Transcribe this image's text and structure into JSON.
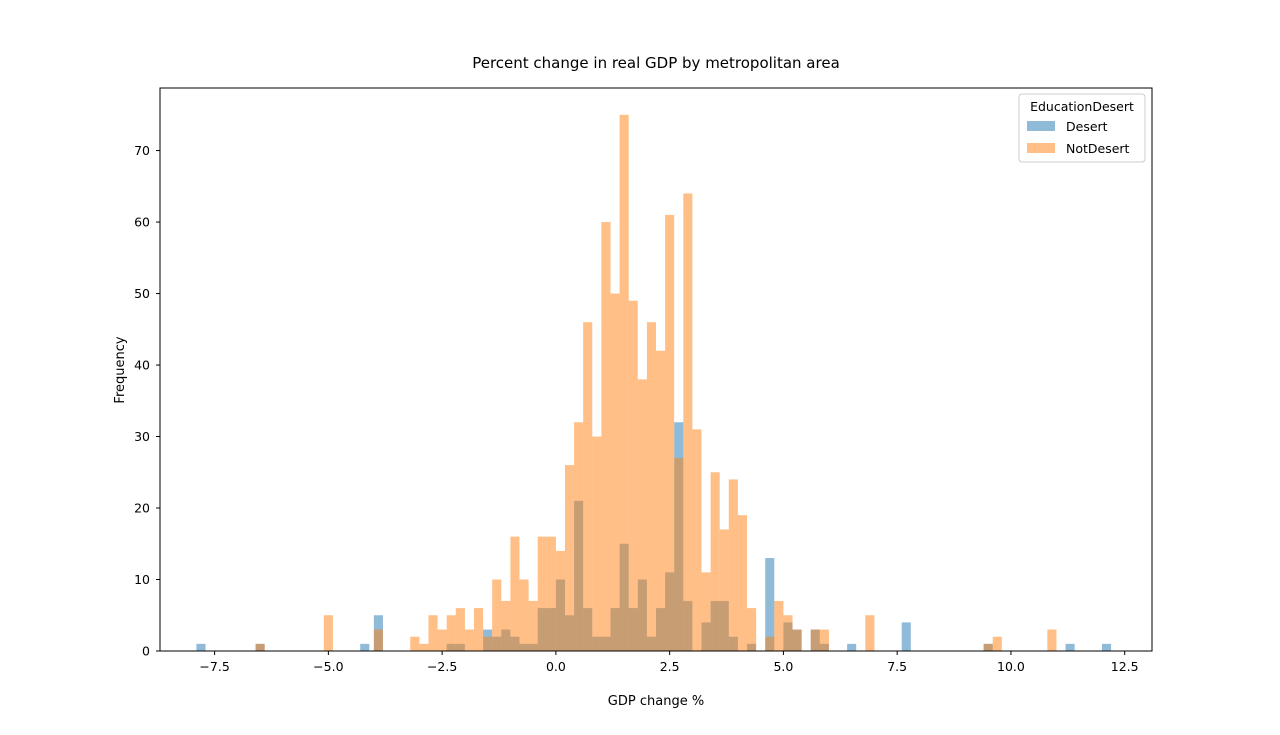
{
  "chart_data": {
    "type": "histogram",
    "title": "Percent change in real GDP by metropolitan area",
    "xlabel": "GDP change %",
    "ylabel": "Frequency",
    "xlim": [
      -8.7,
      13.1
    ],
    "ylim": [
      0,
      78.75
    ],
    "x_ticks": [
      -7.5,
      -5.0,
      -2.5,
      0.0,
      2.5,
      5.0,
      7.5,
      10.0,
      12.5
    ],
    "x_tick_labels": [
      "−7.5",
      "−5.0",
      "−2.5",
      "0.0",
      "2.5",
      "5.0",
      "7.5",
      "10.0",
      "12.5"
    ],
    "y_ticks": [
      0,
      10,
      20,
      30,
      40,
      50,
      60,
      70
    ],
    "y_tick_labels": [
      "0",
      "10",
      "20",
      "30",
      "40",
      "50",
      "60",
      "70"
    ],
    "bin_width": 0.2,
    "legend_title": "EducationDesert",
    "legend_position": "top-right",
    "series": [
      {
        "name": "Desert",
        "color": "#1f77b4",
        "opacity": 0.5,
        "bins": [
          [
            -7.9,
            1
          ],
          [
            -6.6,
            1
          ],
          [
            -4.3,
            1
          ],
          [
            -4.0,
            5
          ],
          [
            -2.4,
            1
          ],
          [
            -2.2,
            1
          ],
          [
            -1.6,
            3
          ],
          [
            -1.4,
            2
          ],
          [
            -1.2,
            3
          ],
          [
            -1.0,
            2
          ],
          [
            -0.8,
            1
          ],
          [
            -0.6,
            1
          ],
          [
            -0.4,
            6
          ],
          [
            -0.2,
            6
          ],
          [
            0.0,
            10
          ],
          [
            0.2,
            5
          ],
          [
            0.4,
            21
          ],
          [
            0.6,
            6
          ],
          [
            0.8,
            2
          ],
          [
            1.0,
            2
          ],
          [
            1.2,
            6
          ],
          [
            1.4,
            15
          ],
          [
            1.6,
            6
          ],
          [
            1.8,
            10
          ],
          [
            2.0,
            2
          ],
          [
            2.2,
            6
          ],
          [
            2.4,
            11
          ],
          [
            2.6,
            32
          ],
          [
            2.8,
            7
          ],
          [
            3.2,
            4
          ],
          [
            3.4,
            7
          ],
          [
            3.6,
            7
          ],
          [
            3.8,
            2
          ],
          [
            4.2,
            1
          ],
          [
            4.6,
            13
          ],
          [
            5.0,
            4
          ],
          [
            5.2,
            3
          ],
          [
            5.6,
            3
          ],
          [
            5.8,
            1
          ],
          [
            6.4,
            1
          ],
          [
            7.6,
            4
          ],
          [
            9.4,
            1
          ],
          [
            11.2,
            1
          ],
          [
            12.0,
            1
          ]
        ]
      },
      {
        "name": "NotDesert",
        "color": "#ff7f0e",
        "opacity": 0.5,
        "bins": [
          [
            -6.6,
            1
          ],
          [
            -5.1,
            5
          ],
          [
            -4.0,
            3
          ],
          [
            -3.2,
            2
          ],
          [
            -3.0,
            1
          ],
          [
            -2.8,
            5
          ],
          [
            -2.6,
            3
          ],
          [
            -2.4,
            5
          ],
          [
            -2.2,
            6
          ],
          [
            -2.0,
            3
          ],
          [
            -1.8,
            6
          ],
          [
            -1.6,
            2
          ],
          [
            -1.4,
            10
          ],
          [
            -1.2,
            7
          ],
          [
            -1.0,
            16
          ],
          [
            -0.8,
            10
          ],
          [
            -0.6,
            7
          ],
          [
            -0.4,
            16
          ],
          [
            -0.2,
            16
          ],
          [
            0.0,
            14
          ],
          [
            0.2,
            26
          ],
          [
            0.4,
            32
          ],
          [
            0.6,
            46
          ],
          [
            0.8,
            30
          ],
          [
            1.0,
            60
          ],
          [
            1.2,
            50
          ],
          [
            1.4,
            75
          ],
          [
            1.6,
            49
          ],
          [
            1.8,
            38
          ],
          [
            2.0,
            46
          ],
          [
            2.2,
            42
          ],
          [
            2.4,
            61
          ],
          [
            2.6,
            27
          ],
          [
            2.8,
            64
          ],
          [
            3.0,
            31
          ],
          [
            3.2,
            11
          ],
          [
            3.4,
            25
          ],
          [
            3.6,
            17
          ],
          [
            3.8,
            24
          ],
          [
            4.0,
            19
          ],
          [
            4.2,
            6
          ],
          [
            4.6,
            2
          ],
          [
            4.8,
            7
          ],
          [
            5.0,
            5
          ],
          [
            5.2,
            3
          ],
          [
            5.6,
            3
          ],
          [
            5.8,
            3
          ],
          [
            6.8,
            5
          ],
          [
            9.4,
            1
          ],
          [
            9.6,
            2
          ],
          [
            10.8,
            3
          ]
        ]
      }
    ]
  }
}
